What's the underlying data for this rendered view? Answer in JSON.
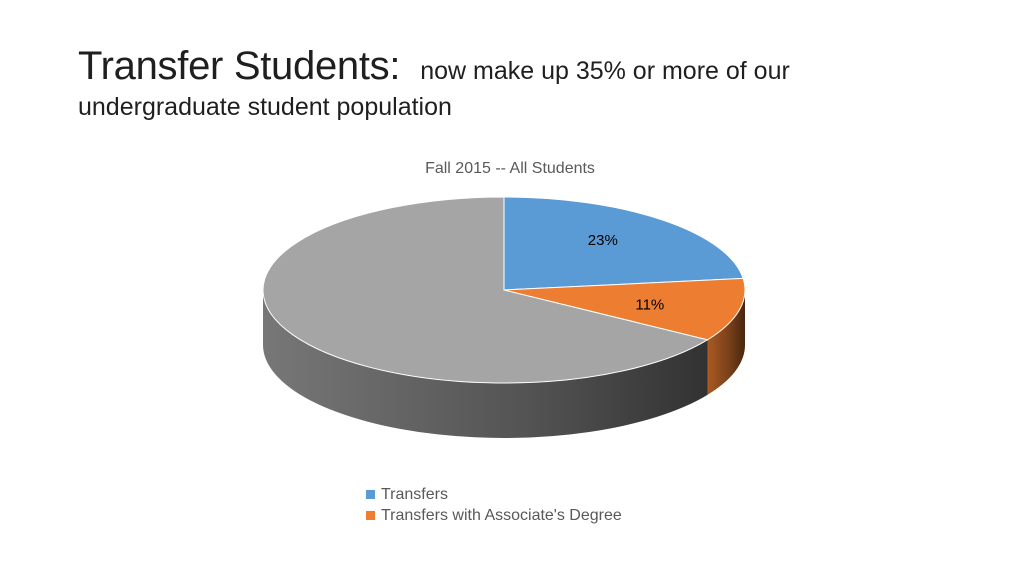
{
  "slide": {
    "title_main": "Transfer Students:",
    "title_sub_line1": "now make up 35% or more of our",
    "title_sub_line2": "undergraduate student population"
  },
  "chart_data": {
    "type": "pie",
    "title": "Fall 2015 -- All Students",
    "three_d": true,
    "legend_position": "bottom",
    "slices": [
      {
        "name": "Transfers",
        "value": 23,
        "label": "23%",
        "color": "#5b9bd5"
      },
      {
        "name": "Transfers with Associate's Degree",
        "value": 11,
        "label": "11%",
        "color": "#ed7d31"
      },
      {
        "name": "",
        "value": 66,
        "label": "",
        "color": "#a5a5a5"
      }
    ]
  }
}
